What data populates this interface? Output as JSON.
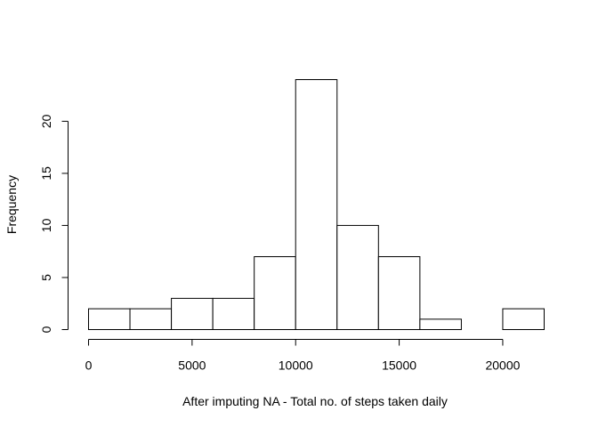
{
  "chart_data": {
    "type": "bar",
    "subtype": "histogram",
    "title": "",
    "xlabel": "After imputing NA - Total no. of steps taken daily",
    "ylabel": "Frequency",
    "bins": [
      {
        "from": 0,
        "to": 2000,
        "count": 2
      },
      {
        "from": 2000,
        "to": 4000,
        "count": 2
      },
      {
        "from": 4000,
        "to": 6000,
        "count": 3
      },
      {
        "from": 6000,
        "to": 8000,
        "count": 3
      },
      {
        "from": 8000,
        "to": 10000,
        "count": 7
      },
      {
        "from": 10000,
        "to": 12000,
        "count": 24
      },
      {
        "from": 12000,
        "to": 14000,
        "count": 10
      },
      {
        "from": 14000,
        "to": 16000,
        "count": 7
      },
      {
        "from": 16000,
        "to": 18000,
        "count": 1
      },
      {
        "from": 18000,
        "to": 20000,
        "count": 0
      },
      {
        "from": 20000,
        "to": 22000,
        "count": 2
      }
    ],
    "xlim": [
      0,
      22000
    ],
    "ylim": [
      0,
      24
    ],
    "xticks": [
      0,
      5000,
      10000,
      15000,
      20000
    ],
    "xtick_labels": [
      "0",
      "5000",
      "10000",
      "15000",
      "20000"
    ],
    "yticks": [
      0,
      5,
      10,
      15,
      20
    ],
    "ytick_labels": [
      "0",
      "5",
      "10",
      "15",
      "20"
    ],
    "grid": false,
    "legend": "none",
    "bar_fill": "#ffffff",
    "bar_stroke": "#000000"
  }
}
